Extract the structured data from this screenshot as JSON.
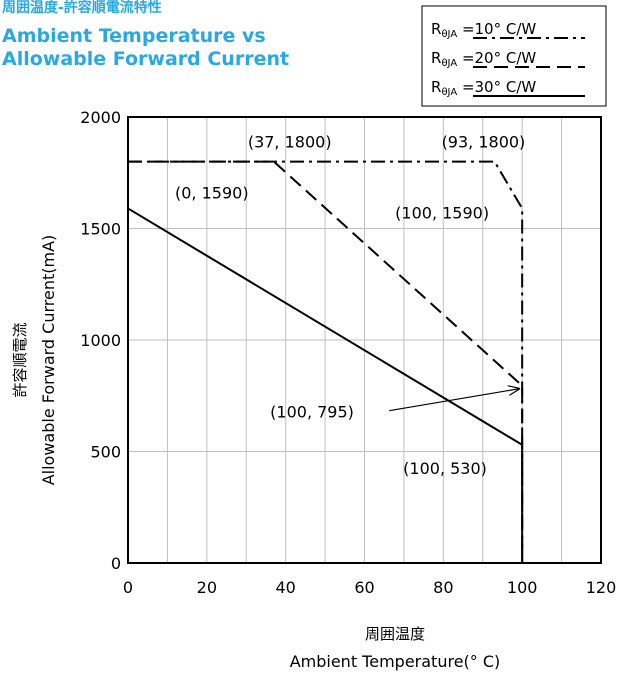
{
  "header": {
    "title_jp": "周囲温度-許容順電流特性",
    "title_en_line1": "Ambient Temperature vs",
    "title_en_line2": "Allowable Forward Current"
  },
  "colors": {
    "title": "#29a9e1",
    "line": "#000000",
    "grid": "#bfbfbf"
  },
  "legend": {
    "placement": "top-right",
    "items": [
      {
        "symbol": "R",
        "subscript": "θJA",
        "value": "=10°  C/W",
        "style": "dash-dot"
      },
      {
        "symbol": "R",
        "subscript": "θJA",
        "value": "=20°  C/W",
        "style": "dashed"
      },
      {
        "symbol": "R",
        "subscript": "θJA",
        "value": "=30°  C/W",
        "style": "solid"
      }
    ]
  },
  "chart_data": {
    "type": "line",
    "title": "周囲温度-許容順電流特性 Ambient Temperature vs Allowable Forward Current",
    "xlabel_jp": "周囲温度",
    "xlabel": "Ambient Temperature(°  C)",
    "ylabel_jp": "許容順電流",
    "ylabel": "Allowable Forward Current(mA)",
    "xlim": [
      0,
      120
    ],
    "ylim": [
      0,
      2000
    ],
    "xticks": [
      0,
      20,
      40,
      60,
      80,
      100,
      120
    ],
    "yticks": [
      0,
      500,
      1000,
      1500,
      2000
    ],
    "x_minor_grid_step": 10,
    "grid": true,
    "series": [
      {
        "name": "RθJA =10°  C/W",
        "style": "dash-dot",
        "x": [
          0,
          93,
          100,
          100
        ],
        "y": [
          1800,
          1800,
          1590,
          0
        ]
      },
      {
        "name": "RθJA =20°  C/W",
        "style": "dashed",
        "x": [
          0,
          37,
          100,
          100
        ],
        "y": [
          1800,
          1800,
          795,
          0
        ]
      },
      {
        "name": "RθJA =30°  C/W",
        "style": "solid",
        "x": [
          0,
          100,
          100
        ],
        "y": [
          1590,
          530,
          0
        ]
      }
    ],
    "annotations": [
      {
        "text": "(37, 1800)",
        "x": 37,
        "y": 1800
      },
      {
        "text": "(93, 1800)",
        "x": 93,
        "y": 1800
      },
      {
        "text": "(0, 1590)",
        "x": 0,
        "y": 1590
      },
      {
        "text": "(100, 1590)",
        "x": 100,
        "y": 1590
      },
      {
        "text": "(100, 795)",
        "x": 100,
        "y": 795,
        "arrow": true
      },
      {
        "text": "(100, 530)",
        "x": 100,
        "y": 530
      }
    ]
  }
}
